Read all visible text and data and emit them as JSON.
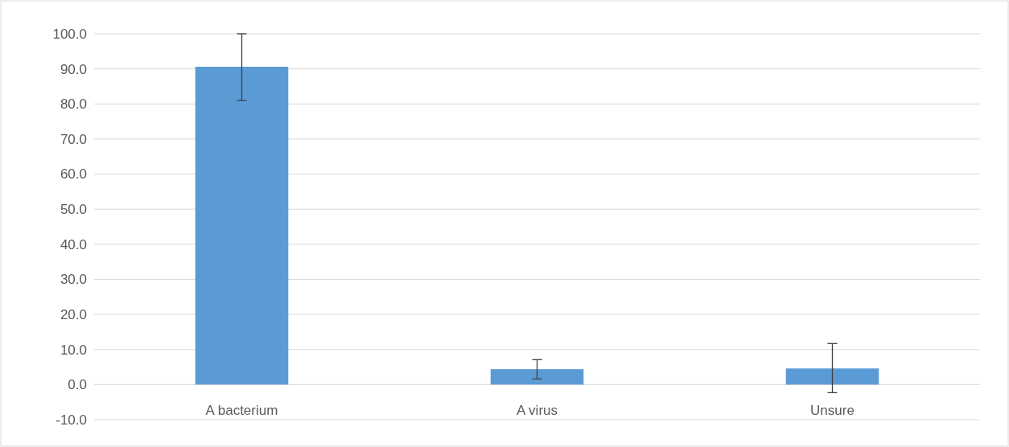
{
  "chart_data": {
    "type": "bar",
    "categories": [
      "A bacterium",
      "A virus",
      "Unsure"
    ],
    "values": [
      90.6,
      4.4,
      4.6
    ],
    "errors": [
      [
        81.0,
        100.0
      ],
      [
        1.6,
        7.1
      ],
      [
        -2.3,
        11.7
      ]
    ],
    "color": "#5b9bd5",
    "ylim": [
      -10,
      100
    ],
    "yticks": [
      {
        "value": -10,
        "label": "-10.0"
      },
      {
        "value": 0,
        "label": "0.0"
      },
      {
        "value": 10,
        "label": "10.0"
      },
      {
        "value": 20,
        "label": "20.0"
      },
      {
        "value": 30,
        "label": "30.0"
      },
      {
        "value": 40,
        "label": "40.0"
      },
      {
        "value": 50,
        "label": "50.0"
      },
      {
        "value": 60,
        "label": "60.0"
      },
      {
        "value": 70,
        "label": "70.0"
      },
      {
        "value": 80,
        "label": "80.0"
      },
      {
        "value": 90,
        "label": "90.0"
      },
      {
        "value": 100,
        "label": "100.0"
      }
    ],
    "grid": "y"
  }
}
